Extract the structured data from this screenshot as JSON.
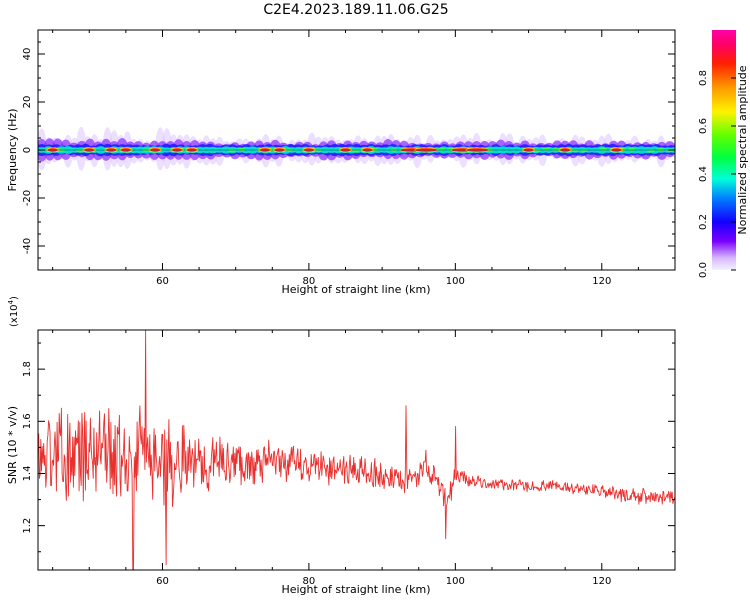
{
  "title": "C2E4.2023.189.11.06.G25",
  "colorbar": {
    "label": "Normalized spectral amplitude",
    "ticks": [
      0.0,
      0.2,
      0.4,
      0.6,
      0.8
    ],
    "tick_labels": [
      "0.0",
      "0.2",
      "0.4",
      "0.6",
      "0.8"
    ]
  },
  "chart_data": [
    {
      "type": "heatmap",
      "title": "C2E4.2023.189.11.06.G25",
      "xlabel": "Height of straight line (km)",
      "ylabel": "Frequency (Hz)",
      "xlim": [
        43,
        130
      ],
      "ylim": [
        -50,
        50
      ],
      "xticks": [
        60,
        80,
        100,
        120
      ],
      "yticks": [
        40,
        20,
        0,
        -20,
        -40
      ],
      "grid": false,
      "colormap": "gist_rainbow (purple = low, red/pink = high)",
      "band_center_hz": 0,
      "band_halfwidth_hz": [
        3,
        7
      ],
      "hotspots_km": [
        45,
        50,
        53,
        55,
        59,
        62,
        64,
        74,
        76,
        80,
        85,
        88,
        94,
        96,
        101,
        103,
        110,
        115,
        122
      ]
    },
    {
      "type": "line",
      "xlabel": "Height of straight line (km)",
      "ylabel": "SNR (10 * v/v)",
      "y_multiplier": "(x10^4)",
      "xlim": [
        43,
        130
      ],
      "ylim": [
        1.03,
        1.95
      ],
      "xticks": [
        60,
        80,
        100,
        120
      ],
      "yticks": [
        1.2,
        1.4,
        1.6,
        1.8
      ],
      "color": "#e8312f",
      "series": [
        {
          "x": [
            43,
            45,
            47,
            50,
            53,
            56,
            58,
            60,
            63,
            66,
            70,
            75,
            80,
            85,
            90,
            93,
            95,
            96,
            97,
            98,
            99,
            100,
            102,
            105,
            110,
            115,
            120,
            125,
            130
          ],
          "mean": [
            1.46,
            1.48,
            1.48,
            1.47,
            1.48,
            1.46,
            1.48,
            1.45,
            1.45,
            1.44,
            1.44,
            1.44,
            1.43,
            1.42,
            1.39,
            1.36,
            1.4,
            1.44,
            1.38,
            1.33,
            1.3,
            1.4,
            1.37,
            1.36,
            1.35,
            1.35,
            1.33,
            1.31,
            1.31
          ],
          "amplitude": [
            0.18,
            0.2,
            0.2,
            0.2,
            0.22,
            0.22,
            0.22,
            0.2,
            0.16,
            0.12,
            0.1,
            0.09,
            0.08,
            0.07,
            0.07,
            0.06,
            0.05,
            0.06,
            0.06,
            0.06,
            0.06,
            0.05,
            0.03,
            0.025,
            0.025,
            0.025,
            0.03,
            0.035,
            0.03
          ],
          "peaks": [
            [
              57.7,
              1.95
            ],
            [
              56,
              1.03
            ],
            [
              60.5,
              1.05
            ],
            [
              93.3,
              1.66
            ],
            [
              98.7,
              1.15
            ],
            [
              100,
              1.58
            ]
          ]
        }
      ]
    }
  ]
}
